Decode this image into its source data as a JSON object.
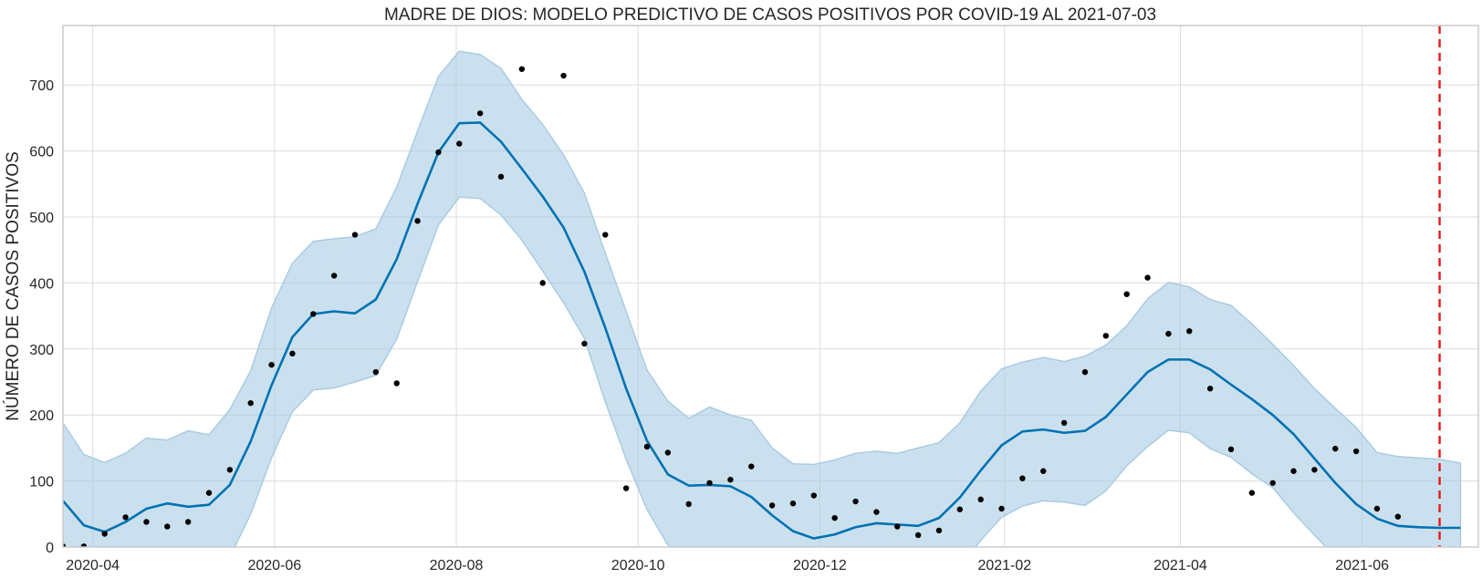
{
  "chart_data": {
    "type": "line",
    "title": "MADRE DE DIOS: MODELO PREDICTIVO DE CASOS POSITIVOS POR COVID-19 AL 2021-07-03",
    "xlabel": "",
    "ylabel": "NÚMERO DE CASOS POSITIVOS",
    "x_tick_labels": [
      "2020-04",
      "2020-06",
      "2020-08",
      "2020-10",
      "2020-12",
      "2021-02",
      "2021-04",
      "2021-06"
    ],
    "x_tick_dates": [
      "2020-04-01",
      "2020-06-01",
      "2020-08-01",
      "2020-10-01",
      "2020-12-01",
      "2021-02-01",
      "2021-04-01",
      "2021-06-01"
    ],
    "y_ticks": [
      0,
      100,
      200,
      300,
      400,
      500,
      600,
      700
    ],
    "xlim": [
      "2020-03-22",
      "2021-07-10"
    ],
    "ylim": [
      0,
      790
    ],
    "grid": true,
    "colors": {
      "forecast": "#0072B2",
      "band": "#A9CCE3",
      "observed": "#000000",
      "cutoff": "#E31A1C"
    },
    "cutoff_date": "2021-06-27",
    "observed": [
      {
        "x": "2020-03-22",
        "y": 1
      },
      {
        "x": "2020-03-29",
        "y": 1
      },
      {
        "x": "2020-04-05",
        "y": 20
      },
      {
        "x": "2020-04-12",
        "y": 45
      },
      {
        "x": "2020-04-19",
        "y": 38
      },
      {
        "x": "2020-04-26",
        "y": 31
      },
      {
        "x": "2020-05-03",
        "y": 38
      },
      {
        "x": "2020-05-10",
        "y": 82
      },
      {
        "x": "2020-05-17",
        "y": 117
      },
      {
        "x": "2020-05-24",
        "y": 218
      },
      {
        "x": "2020-05-31",
        "y": 276
      },
      {
        "x": "2020-06-07",
        "y": 293
      },
      {
        "x": "2020-06-14",
        "y": 353
      },
      {
        "x": "2020-06-21",
        "y": 411
      },
      {
        "x": "2020-06-28",
        "y": 473
      },
      {
        "x": "2020-07-05",
        "y": 265
      },
      {
        "x": "2020-07-12",
        "y": 248
      },
      {
        "x": "2020-07-19",
        "y": 494
      },
      {
        "x": "2020-07-26",
        "y": 598
      },
      {
        "x": "2020-08-02",
        "y": 611
      },
      {
        "x": "2020-08-09",
        "y": 657
      },
      {
        "x": "2020-08-16",
        "y": 561
      },
      {
        "x": "2020-08-23",
        "y": 724
      },
      {
        "x": "2020-08-30",
        "y": 400
      },
      {
        "x": "2020-09-06",
        "y": 714
      },
      {
        "x": "2020-09-13",
        "y": 308
      },
      {
        "x": "2020-09-20",
        "y": 473
      },
      {
        "x": "2020-09-27",
        "y": 89
      },
      {
        "x": "2020-10-04",
        "y": 152
      },
      {
        "x": "2020-10-11",
        "y": 143
      },
      {
        "x": "2020-10-18",
        "y": 65
      },
      {
        "x": "2020-10-25",
        "y": 97
      },
      {
        "x": "2020-11-01",
        "y": 102
      },
      {
        "x": "2020-11-08",
        "y": 122
      },
      {
        "x": "2020-11-15",
        "y": 63
      },
      {
        "x": "2020-11-22",
        "y": 66
      },
      {
        "x": "2020-11-29",
        "y": 78
      },
      {
        "x": "2020-12-06",
        "y": 44
      },
      {
        "x": "2020-12-13",
        "y": 69
      },
      {
        "x": "2020-12-20",
        "y": 53
      },
      {
        "x": "2020-12-27",
        "y": 31
      },
      {
        "x": "2021-01-03",
        "y": 18
      },
      {
        "x": "2021-01-10",
        "y": 25
      },
      {
        "x": "2021-01-17",
        "y": 57
      },
      {
        "x": "2021-01-24",
        "y": 72
      },
      {
        "x": "2021-01-31",
        "y": 58
      },
      {
        "x": "2021-02-07",
        "y": 104
      },
      {
        "x": "2021-02-14",
        "y": 115
      },
      {
        "x": "2021-02-21",
        "y": 188
      },
      {
        "x": "2021-02-28",
        "y": 265
      },
      {
        "x": "2021-03-07",
        "y": 320
      },
      {
        "x": "2021-03-14",
        "y": 383
      },
      {
        "x": "2021-03-21",
        "y": 408
      },
      {
        "x": "2021-03-28",
        "y": 323
      },
      {
        "x": "2021-04-04",
        "y": 327
      },
      {
        "x": "2021-04-11",
        "y": 240
      },
      {
        "x": "2021-04-18",
        "y": 148
      },
      {
        "x": "2021-04-25",
        "y": 82
      },
      {
        "x": "2021-05-02",
        "y": 97
      },
      {
        "x": "2021-05-09",
        "y": 115
      },
      {
        "x": "2021-05-16",
        "y": 117
      },
      {
        "x": "2021-05-23",
        "y": 149
      },
      {
        "x": "2021-05-30",
        "y": 145
      },
      {
        "x": "2021-06-06",
        "y": 58
      },
      {
        "x": "2021-06-13",
        "y": 46
      }
    ],
    "forecast": [
      {
        "x": "2020-03-22",
        "y": 70,
        "lower": -50,
        "upper": 188
      },
      {
        "x": "2020-03-29",
        "y": 33,
        "lower": -80,
        "upper": 140
      },
      {
        "x": "2020-04-05",
        "y": 23,
        "lower": -90,
        "upper": 128
      },
      {
        "x": "2020-04-12",
        "y": 38,
        "lower": -70,
        "upper": 142
      },
      {
        "x": "2020-04-19",
        "y": 58,
        "lower": -50,
        "upper": 165
      },
      {
        "x": "2020-04-26",
        "y": 66,
        "lower": -45,
        "upper": 162
      },
      {
        "x": "2020-05-03",
        "y": 61,
        "lower": -50,
        "upper": 176
      },
      {
        "x": "2020-05-10",
        "y": 64,
        "lower": -50,
        "upper": 170
      },
      {
        "x": "2020-05-17",
        "y": 94,
        "lower": -15,
        "upper": 208
      },
      {
        "x": "2020-05-24",
        "y": 160,
        "lower": 50,
        "upper": 267
      },
      {
        "x": "2020-05-31",
        "y": 245,
        "lower": 135,
        "upper": 362
      },
      {
        "x": "2020-06-07",
        "y": 318,
        "lower": 205,
        "upper": 430
      },
      {
        "x": "2020-06-14",
        "y": 353,
        "lower": 238,
        "upper": 463
      },
      {
        "x": "2020-06-21",
        "y": 357,
        "lower": 241,
        "upper": 467
      },
      {
        "x": "2020-06-28",
        "y": 354,
        "lower": 250,
        "upper": 470
      },
      {
        "x": "2020-07-05",
        "y": 375,
        "lower": 260,
        "upper": 482
      },
      {
        "x": "2020-07-12",
        "y": 436,
        "lower": 315,
        "upper": 545
      },
      {
        "x": "2020-07-19",
        "y": 520,
        "lower": 402,
        "upper": 630
      },
      {
        "x": "2020-07-26",
        "y": 598,
        "lower": 488,
        "upper": 713
      },
      {
        "x": "2020-08-02",
        "y": 642,
        "lower": 530,
        "upper": 751
      },
      {
        "x": "2020-08-09",
        "y": 643,
        "lower": 528,
        "upper": 746
      },
      {
        "x": "2020-08-16",
        "y": 614,
        "lower": 503,
        "upper": 725
      },
      {
        "x": "2020-08-23",
        "y": 573,
        "lower": 465,
        "upper": 678
      },
      {
        "x": "2020-08-30",
        "y": 531,
        "lower": 418,
        "upper": 640
      },
      {
        "x": "2020-09-06",
        "y": 484,
        "lower": 370,
        "upper": 594
      },
      {
        "x": "2020-09-13",
        "y": 417,
        "lower": 316,
        "upper": 536
      },
      {
        "x": "2020-09-20",
        "y": 332,
        "lower": 220,
        "upper": 445
      },
      {
        "x": "2020-09-27",
        "y": 240,
        "lower": 133,
        "upper": 357
      },
      {
        "x": "2020-10-04",
        "y": 161,
        "lower": 57,
        "upper": 268
      },
      {
        "x": "2020-10-11",
        "y": 110,
        "lower": 3,
        "upper": 221
      },
      {
        "x": "2020-10-18",
        "y": 93,
        "lower": -20,
        "upper": 195
      },
      {
        "x": "2020-10-25",
        "y": 94,
        "lower": -20,
        "upper": 212
      },
      {
        "x": "2020-11-01",
        "y": 92,
        "lower": -20,
        "upper": 200
      },
      {
        "x": "2020-11-08",
        "y": 76,
        "lower": -40,
        "upper": 192
      },
      {
        "x": "2020-11-15",
        "y": 48,
        "lower": -60,
        "upper": 150
      },
      {
        "x": "2020-11-22",
        "y": 24,
        "lower": -80,
        "upper": 126
      },
      {
        "x": "2020-11-29",
        "y": 13,
        "lower": -90,
        "upper": 125
      },
      {
        "x": "2020-12-06",
        "y": 19,
        "lower": -85,
        "upper": 132
      },
      {
        "x": "2020-12-13",
        "y": 30,
        "lower": -75,
        "upper": 142
      },
      {
        "x": "2020-12-20",
        "y": 36,
        "lower": -70,
        "upper": 145
      },
      {
        "x": "2020-12-27",
        "y": 34,
        "lower": -75,
        "upper": 142
      },
      {
        "x": "2021-01-03",
        "y": 32,
        "lower": -80,
        "upper": 150
      },
      {
        "x": "2021-01-10",
        "y": 44,
        "lower": -60,
        "upper": 158
      },
      {
        "x": "2021-01-17",
        "y": 75,
        "lower": -30,
        "upper": 188
      },
      {
        "x": "2021-01-24",
        "y": 116,
        "lower": 10,
        "upper": 236
      },
      {
        "x": "2021-01-31",
        "y": 154,
        "lower": 45,
        "upper": 270
      },
      {
        "x": "2021-02-07",
        "y": 175,
        "lower": 62,
        "upper": 280
      },
      {
        "x": "2021-02-14",
        "y": 178,
        "lower": 70,
        "upper": 287
      },
      {
        "x": "2021-02-21",
        "y": 173,
        "lower": 68,
        "upper": 281
      },
      {
        "x": "2021-02-28",
        "y": 176,
        "lower": 63,
        "upper": 289
      },
      {
        "x": "2021-03-07",
        "y": 197,
        "lower": 85,
        "upper": 306
      },
      {
        "x": "2021-03-14",
        "y": 231,
        "lower": 123,
        "upper": 335
      },
      {
        "x": "2021-03-21",
        "y": 265,
        "lower": 152,
        "upper": 376
      },
      {
        "x": "2021-03-28",
        "y": 284,
        "lower": 177,
        "upper": 401
      },
      {
        "x": "2021-04-04",
        "y": 284,
        "lower": 173,
        "upper": 394
      },
      {
        "x": "2021-04-11",
        "y": 269,
        "lower": 149,
        "upper": 375
      },
      {
        "x": "2021-04-18",
        "y": 246,
        "lower": 136,
        "upper": 366
      },
      {
        "x": "2021-04-25",
        "y": 224,
        "lower": 111,
        "upper": 338
      },
      {
        "x": "2021-05-02",
        "y": 200,
        "lower": 90,
        "upper": 307
      },
      {
        "x": "2021-05-09",
        "y": 171,
        "lower": 52,
        "upper": 275
      },
      {
        "x": "2021-05-16",
        "y": 134,
        "lower": 18,
        "upper": 240
      },
      {
        "x": "2021-05-23",
        "y": 97,
        "lower": -15,
        "upper": 210
      },
      {
        "x": "2021-05-30",
        "y": 65,
        "lower": -45,
        "upper": 181
      },
      {
        "x": "2021-06-06",
        "y": 43,
        "lower": -60,
        "upper": 143
      },
      {
        "x": "2021-06-13",
        "y": 32,
        "lower": -70,
        "upper": 137
      },
      {
        "x": "2021-06-20",
        "y": 30,
        "lower": -70,
        "upper": 135
      },
      {
        "x": "2021-06-27",
        "y": 29,
        "lower": -75,
        "upper": 133
      },
      {
        "x": "2021-07-04",
        "y": 29,
        "lower": -75,
        "upper": 127
      }
    ]
  }
}
